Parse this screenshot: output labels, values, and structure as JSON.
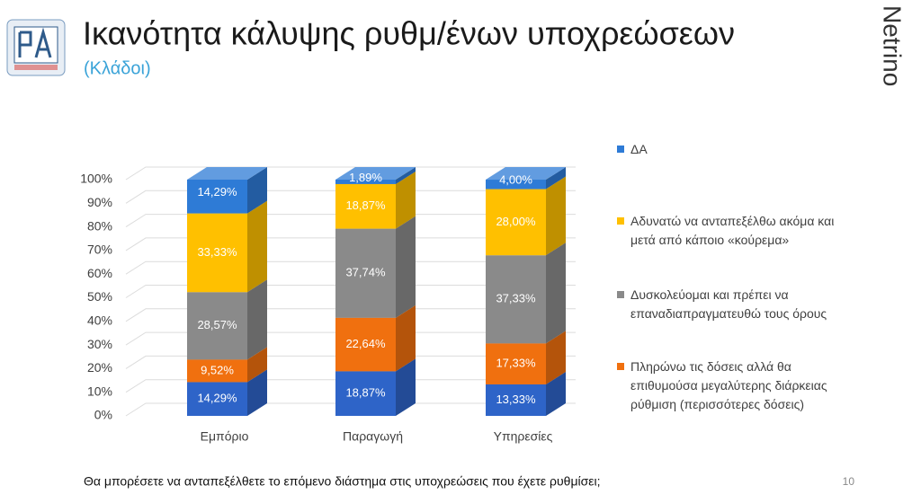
{
  "title": "Ικανότητα κάλυψης ρυθμ/ένων υποχρεώσεων",
  "subtitle": "(Κλάδοι)",
  "brand": "Netrino",
  "footer": "Θα μπορέσετε να ανταπεξέλθετε το επόμενο διάστημα στις υποχρεώσεις που έχετε ρυθμίσει;",
  "page_number": "10",
  "chart_data": {
    "type": "stacked-bar-3d",
    "categories": [
      "Εμπόριο",
      "Παραγωγή",
      "Υπηρεσίες"
    ],
    "series": [
      {
        "color": "#2e64c8",
        "values": [
          14.29,
          18.87,
          13.33
        ],
        "value_labels": [
          "14,29%",
          "18,87%",
          "13,33%"
        ]
      },
      {
        "name": "Πληρώνω τις δόσεις αλλά θα επιθυμούσα μεγαλύτερης διάρκειας ρύθμιση (περισσότερες δόσεις)",
        "color": "#f0700f",
        "values": [
          9.52,
          22.64,
          17.33
        ],
        "value_labels": [
          "9,52%",
          "22,64%",
          "17,33%"
        ]
      },
      {
        "name": "Δυσκολεύομαι και πρέπει να επαναδιαπραγματευθώ τους όρους",
        "color": "#8a8a8a",
        "values": [
          28.57,
          37.74,
          37.33
        ],
        "value_labels": [
          "28,57%",
          "37,74%",
          "37,33%"
        ]
      },
      {
        "name": "Αδυνατώ να ανταπεξέλθω ακόμα και μετά από κάποιο «κούρεμα»",
        "color": "#ffc000",
        "values": [
          33.33,
          18.87,
          28.0
        ],
        "value_labels": [
          "33,33%",
          "18,87%",
          "28,00%"
        ]
      },
      {
        "name": "ΔΑ",
        "color": "#2e7bd6",
        "values": [
          14.29,
          1.89,
          4.0
        ],
        "value_labels": [
          "14,29%",
          "1,89%",
          "4,00%"
        ]
      }
    ],
    "ylim": [
      0,
      100
    ],
    "yticks": [
      {
        "value": 0,
        "label": "0%"
      },
      {
        "value": 10,
        "label": "10%"
      },
      {
        "value": 20,
        "label": "20%"
      },
      {
        "value": 30,
        "label": "30%"
      },
      {
        "value": 40,
        "label": "40%"
      },
      {
        "value": 50,
        "label": "50%"
      },
      {
        "value": 60,
        "label": "60%"
      },
      {
        "value": 70,
        "label": "70%"
      },
      {
        "value": 80,
        "label": "80%"
      },
      {
        "value": 90,
        "label": "90%"
      },
      {
        "value": 100,
        "label": "100%"
      }
    ],
    "grid": true
  }
}
